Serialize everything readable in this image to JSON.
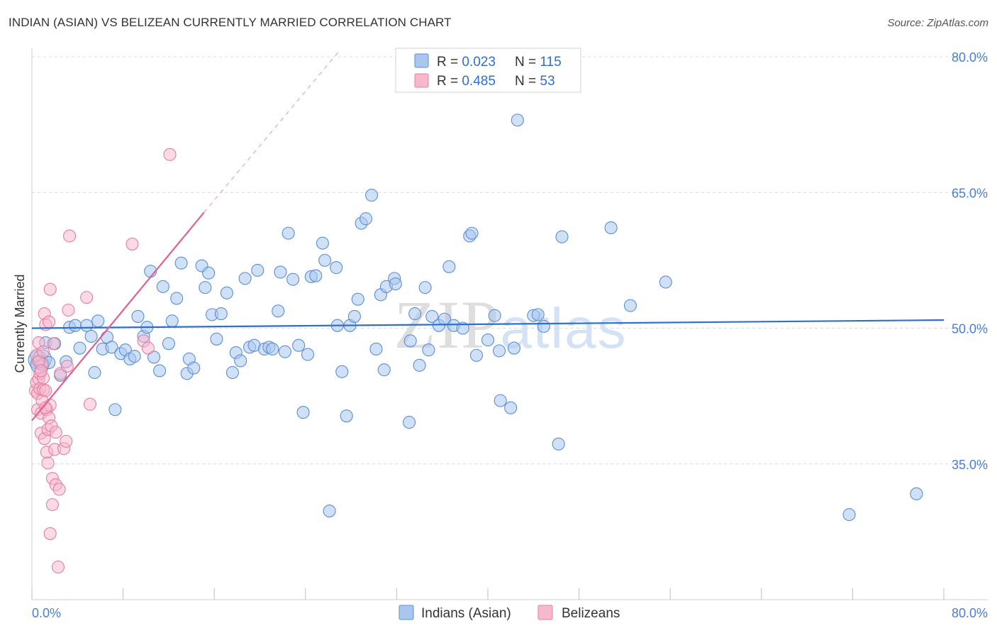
{
  "header": {
    "title": "INDIAN (ASIAN) VS BELIZEAN CURRENTLY MARRIED CORRELATION CHART",
    "source": "Source: ZipAtlas.com"
  },
  "watermark": "ZIPatlas",
  "colors": {
    "blue_fill": "#a9c6ef",
    "blue_stroke": "#5a8fd6",
    "blue_line": "#2f6fcd",
    "pink_fill": "#f6b8cb",
    "pink_stroke": "#e57ea0",
    "pink_line": "#e0618c",
    "grid": "#d9d9d9",
    "tick_text": "#4a7fd0"
  },
  "legend": {
    "rows": [
      {
        "r_label": "R = ",
        "r_value": "0.023",
        "n_label": "N = ",
        "n_value": "115"
      },
      {
        "r_label": "R = ",
        "r_value": "0.485",
        "n_label": "N = ",
        "n_value": "53"
      }
    ]
  },
  "bottom_legend": {
    "items": [
      "Indians (Asian)",
      "Belizeans"
    ]
  },
  "chart_data": {
    "type": "scatter",
    "title": "INDIAN (ASIAN) VS BELIZEAN CURRENTLY MARRIED CORRELATION CHART",
    "xlabel": "",
    "ylabel": "Currently Married",
    "xlim": [
      0,
      80
    ],
    "ylim": [
      20,
      80
    ],
    "x_tick_labels": [
      "0.0%",
      "80.0%"
    ],
    "y_ticks": [
      35,
      50,
      65,
      80
    ],
    "y_tick_labels": [
      "35.0%",
      "50.0%",
      "65.0%",
      "80.0%"
    ],
    "grid": true,
    "legend_position": "top-center",
    "series": [
      {
        "name": "Indians (Asian)",
        "r": 0.023,
        "n": 115,
        "trend": {
          "x0": 0,
          "y0": 50.0,
          "x1": 80,
          "y1": 50.9
        },
        "points": [
          [
            0.5,
            46.5
          ],
          [
            0.7,
            46.0
          ],
          [
            0.9,
            46.6
          ],
          [
            1.2,
            48.4
          ],
          [
            1.5,
            46.2
          ],
          [
            2.0,
            48.3
          ],
          [
            2.5,
            44.8
          ],
          [
            3.0,
            46.3
          ],
          [
            3.3,
            50.1
          ],
          [
            3.8,
            50.3
          ],
          [
            4.2,
            47.8
          ],
          [
            4.8,
            50.3
          ],
          [
            5.2,
            49.1
          ],
          [
            5.5,
            45.1
          ],
          [
            5.8,
            50.8
          ],
          [
            6.2,
            47.7
          ],
          [
            6.6,
            49.0
          ],
          [
            7.0,
            47.9
          ],
          [
            7.3,
            41.0
          ],
          [
            7.8,
            47.2
          ],
          [
            8.2,
            47.6
          ],
          [
            8.6,
            46.6
          ],
          [
            9.0,
            46.9
          ],
          [
            9.3,
            51.3
          ],
          [
            9.8,
            49.1
          ],
          [
            10.1,
            50.1
          ],
          [
            10.4,
            56.3
          ],
          [
            10.7,
            46.8
          ],
          [
            11.2,
            45.3
          ],
          [
            11.5,
            54.6
          ],
          [
            12.0,
            48.3
          ],
          [
            12.3,
            50.8
          ],
          [
            12.7,
            53.3
          ],
          [
            13.1,
            57.2
          ],
          [
            13.6,
            45.0
          ],
          [
            13.8,
            46.6
          ],
          [
            14.2,
            45.6
          ],
          [
            14.9,
            56.9
          ],
          [
            15.2,
            54.5
          ],
          [
            15.5,
            56.1
          ],
          [
            15.8,
            51.5
          ],
          [
            16.2,
            48.8
          ],
          [
            16.6,
            51.6
          ],
          [
            17.1,
            53.9
          ],
          [
            17.6,
            45.1
          ],
          [
            17.9,
            47.3
          ],
          [
            18.3,
            46.4
          ],
          [
            18.7,
            55.5
          ],
          [
            19.1,
            47.9
          ],
          [
            19.5,
            48.1
          ],
          [
            19.8,
            56.4
          ],
          [
            20.4,
            47.7
          ],
          [
            20.8,
            47.9
          ],
          [
            21.1,
            47.7
          ],
          [
            21.6,
            51.9
          ],
          [
            21.8,
            56.2
          ],
          [
            22.2,
            47.4
          ],
          [
            22.5,
            60.5
          ],
          [
            22.9,
            55.4
          ],
          [
            23.4,
            48.1
          ],
          [
            23.8,
            40.7
          ],
          [
            24.2,
            47.1
          ],
          [
            24.5,
            55.7
          ],
          [
            24.9,
            55.8
          ],
          [
            25.5,
            59.4
          ],
          [
            25.7,
            57.5
          ],
          [
            26.1,
            29.8
          ],
          [
            26.7,
            56.7
          ],
          [
            26.8,
            50.3
          ],
          [
            27.2,
            45.2
          ],
          [
            27.6,
            40.3
          ],
          [
            27.9,
            50.3
          ],
          [
            28.3,
            51.3
          ],
          [
            28.6,
            53.2
          ],
          [
            28.9,
            61.6
          ],
          [
            29.3,
            62.1
          ],
          [
            29.8,
            64.7
          ],
          [
            30.2,
            47.7
          ],
          [
            30.6,
            53.7
          ],
          [
            30.9,
            45.4
          ],
          [
            31.1,
            54.6
          ],
          [
            31.8,
            55.5
          ],
          [
            31.9,
            54.9
          ],
          [
            33.1,
            39.6
          ],
          [
            33.2,
            48.6
          ],
          [
            33.6,
            51.6
          ],
          [
            34.0,
            45.9
          ],
          [
            34.5,
            54.5
          ],
          [
            34.8,
            47.6
          ],
          [
            35.1,
            51.3
          ],
          [
            35.7,
            50.3
          ],
          [
            36.2,
            51.0
          ],
          [
            36.6,
            56.8
          ],
          [
            37.0,
            50.3
          ],
          [
            37.8,
            50.0
          ],
          [
            38.4,
            60.2
          ],
          [
            38.6,
            60.5
          ],
          [
            39.0,
            47.0
          ],
          [
            40.0,
            48.7
          ],
          [
            40.6,
            51.4
          ],
          [
            41.0,
            47.5
          ],
          [
            41.1,
            42.0
          ],
          [
            42.0,
            41.2
          ],
          [
            42.3,
            47.8
          ],
          [
            42.6,
            73.0
          ],
          [
            44.0,
            51.4
          ],
          [
            44.4,
            51.5
          ],
          [
            44.9,
            50.2
          ],
          [
            46.2,
            37.2
          ],
          [
            46.5,
            60.1
          ],
          [
            50.8,
            61.1
          ],
          [
            52.5,
            52.5
          ],
          [
            55.6,
            55.1
          ],
          [
            71.7,
            29.4
          ],
          [
            77.6,
            31.7
          ]
        ]
      },
      {
        "name": "Belizeans",
        "r": 0.485,
        "n": 53,
        "trend": {
          "x0": 0,
          "y0": 39.8,
          "x1": 15.1,
          "y1": 62.8
        },
        "trend_dashed": {
          "x0": 15.1,
          "y0": 62.8,
          "x1": 27.0,
          "y1": 80.7
        },
        "points": [
          [
            0.3,
            43.1
          ],
          [
            0.4,
            44.0
          ],
          [
            0.5,
            41.0
          ],
          [
            0.5,
            42.8
          ],
          [
            0.6,
            44.4
          ],
          [
            0.6,
            48.4
          ],
          [
            0.7,
            45.0
          ],
          [
            0.7,
            43.3
          ],
          [
            0.8,
            38.4
          ],
          [
            0.8,
            40.6
          ],
          [
            0.9,
            42.0
          ],
          [
            0.9,
            46.0
          ],
          [
            1.0,
            43.2
          ],
          [
            1.0,
            44.5
          ],
          [
            1.1,
            51.6
          ],
          [
            1.1,
            37.8
          ],
          [
            1.2,
            43.1
          ],
          [
            1.2,
            50.4
          ],
          [
            1.3,
            36.3
          ],
          [
            1.3,
            41.0
          ],
          [
            1.4,
            35.1
          ],
          [
            1.4,
            38.8
          ],
          [
            1.5,
            40.1
          ],
          [
            1.5,
            50.7
          ],
          [
            1.6,
            54.3
          ],
          [
            1.6,
            41.5
          ],
          [
            1.6,
            27.3
          ],
          [
            1.7,
            39.2
          ],
          [
            1.8,
            33.4
          ],
          [
            1.8,
            30.5
          ],
          [
            2.0,
            36.6
          ],
          [
            2.1,
            32.7
          ],
          [
            2.1,
            38.5
          ],
          [
            2.4,
            32.2
          ],
          [
            2.3,
            23.6
          ],
          [
            2.5,
            45.0
          ],
          [
            2.8,
            36.7
          ],
          [
            3.0,
            37.5
          ],
          [
            3.1,
            45.8
          ],
          [
            3.2,
            52.0
          ],
          [
            3.3,
            60.2
          ],
          [
            4.8,
            53.4
          ],
          [
            5.1,
            41.6
          ],
          [
            8.8,
            59.3
          ],
          [
            9.8,
            48.6
          ],
          [
            10.2,
            47.8
          ],
          [
            12.1,
            69.2
          ],
          [
            0.4,
            47.0
          ],
          [
            0.6,
            46.3
          ],
          [
            1.0,
            47.4
          ],
          [
            1.9,
            48.3
          ],
          [
            0.8,
            45.3
          ],
          [
            1.2,
            41.2
          ]
        ]
      }
    ]
  }
}
